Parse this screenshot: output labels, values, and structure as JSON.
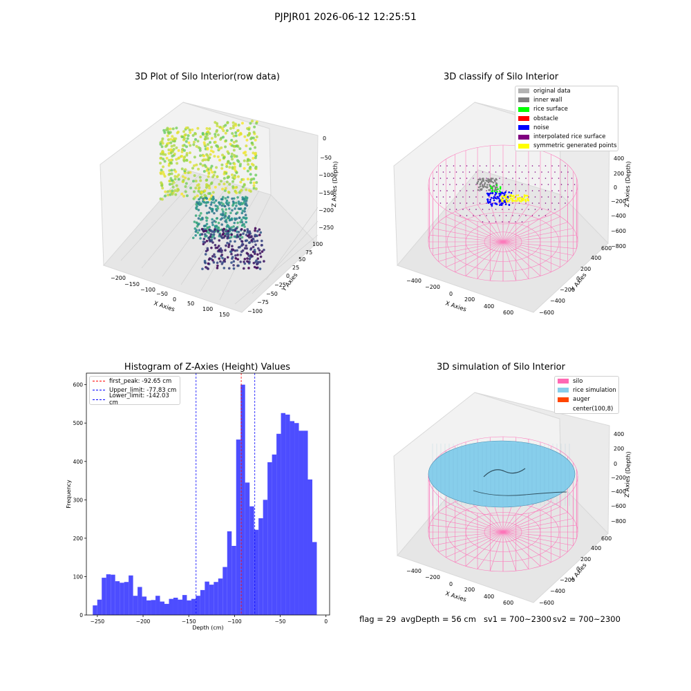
{
  "suptitle": "PJPJR01 2026-06-12 12:25:51",
  "panels": {
    "raw": {
      "title": "3D Plot of Silo Interior(row data)",
      "xlabel": "X Axies",
      "ylabel": "Y Axies",
      "zlabel": "Z Axies (Depth)",
      "xticks": [
        "−200",
        "−150",
        "−100",
        "−50",
        "0",
        "50",
        "100",
        "150"
      ],
      "yticks": [
        "−100",
        "−75",
        "−50",
        "−25",
        "0",
        "25",
        "50",
        "75",
        "100"
      ],
      "zticks": [
        "0",
        "−50",
        "−100",
        "−150",
        "−200",
        "−250"
      ]
    },
    "classify": {
      "title": "3D classify of Silo Interior",
      "xlabel": "X Axies",
      "ylabel": "Y Axies",
      "zlabel": "Z Axies (Depth)",
      "xticks": [
        "−400",
        "−200",
        "0",
        "200",
        "400",
        "600"
      ],
      "yticks": [
        "−600",
        "−400",
        "−200",
        "0",
        "200",
        "400",
        "600"
      ],
      "zticks": [
        "400",
        "200",
        "0",
        "−200",
        "−400",
        "−600",
        "−800"
      ],
      "legend": [
        {
          "label": "original data",
          "color": "#b3b3b3"
        },
        {
          "label": "inner wall",
          "color": "#808080"
        },
        {
          "label": "rice surface",
          "color": "#00ff00"
        },
        {
          "label": "obstacle",
          "color": "#ff0000"
        },
        {
          "label": "noise",
          "color": "#0000ff"
        },
        {
          "label": "interpolated rice surface",
          "color": "#800080"
        },
        {
          "label": "symmetric generated points",
          "color": "#ffff00"
        }
      ]
    },
    "simulation": {
      "title": "3D simulation of Silo Interior",
      "xlabel": "X Axies",
      "ylabel": "Y Axies",
      "zlabel": "Z Axies (Depth)",
      "xticks": [
        "−400",
        "−200",
        "0",
        "200",
        "400",
        "600"
      ],
      "yticks": [
        "−600",
        "−400",
        "−200",
        "0",
        "200",
        "400",
        "600"
      ],
      "zticks": [
        "400",
        "200",
        "0",
        "−200",
        "−400",
        "−600",
        "−800"
      ],
      "legend": [
        {
          "label": "silo",
          "color": "#ff69b4"
        },
        {
          "label": "rice simulation",
          "color": "#87ceeb"
        },
        {
          "label": "auger",
          "color": "#ff4500"
        },
        {
          "label": "center(100,8)",
          "color": ""
        }
      ]
    }
  },
  "footer": {
    "flag": "flag = 29",
    "avg": "avgDepth = 56 cm",
    "sv1": "sv1 = 700~2300",
    "sv2": "sv2 = 700~2300"
  },
  "colors": {
    "bars": "#4d4dff",
    "first_peak": "#ff0000",
    "limits": "#0000ff"
  },
  "chart_data": {
    "type": "bar",
    "title": "Histogram of Z-Axies (Height) Values",
    "xlabel": "Depth (cm)",
    "ylabel": "Frequency",
    "xlim": [
      -262,
      4
    ],
    "ylim": [
      0,
      630
    ],
    "xticks": [
      -250,
      -200,
      -150,
      -100,
      -50,
      0
    ],
    "xtick_labels": [
      "−250",
      "−200",
      "−150",
      "−100",
      "−50",
      "0"
    ],
    "yticks": [
      0,
      100,
      200,
      300,
      400,
      500,
      600
    ],
    "bin_start": -255,
    "bin_width": 4.9,
    "values": [
      25,
      40,
      97,
      106,
      105,
      88,
      84,
      86,
      103,
      50,
      73,
      48,
      38,
      39,
      50,
      35,
      29,
      42,
      45,
      40,
      52,
      38,
      42,
      50,
      65,
      87,
      79,
      86,
      95,
      125,
      218,
      180,
      457,
      600,
      345,
      283,
      222,
      252,
      300,
      398,
      418,
      472,
      526,
      522,
      505,
      500,
      480,
      480,
      353,
      190
    ],
    "vlines": [
      {
        "label": "first_peak: -92.65 cm",
        "x": -92.65,
        "color": "#ff0000"
      },
      {
        "label": "Upper_limit: -77.83 cm",
        "x": -77.83,
        "color": "#0000ff"
      },
      {
        "label": "Lower_limit: -142.03 cm",
        "x": -142.03,
        "color": "#0000ff"
      }
    ]
  }
}
